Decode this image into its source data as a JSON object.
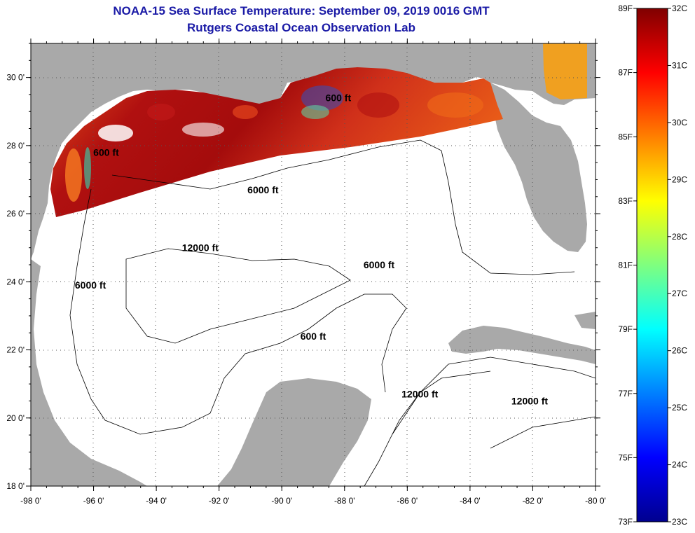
{
  "title": {
    "line1": "NOAA-15 Sea Surface Temperature:  September 09, 2019 0016 GMT",
    "line2": "Rutgers Coastal Ocean Observation Lab"
  },
  "colors": {
    "title": "#1a1aa6",
    "land": "#a9a9a9",
    "ocean": "#ffffff"
  },
  "map": {
    "lon_range": [
      -98,
      -80
    ],
    "lat_range": [
      18,
      31
    ],
    "lon_ticks": [
      "-98 0'",
      "-96 0'",
      "-94 0'",
      "-92 0'",
      "-90 0'",
      "-88 0'",
      "-86 0'",
      "-84 0'",
      "-82 0'",
      "-80 0'"
    ],
    "lat_ticks": [
      "30 0'",
      "28 0'",
      "26 0'",
      "24 0'",
      "22 0'",
      "20 0'",
      "18 0'"
    ],
    "contour_labels": [
      {
        "text": "600 ft",
        "lon": -95.6,
        "lat": 27.7
      },
      {
        "text": "6000 ft",
        "lon": -90.6,
        "lat": 26.6
      },
      {
        "text": "600 ft",
        "lon": -88.2,
        "lat": 29.3
      },
      {
        "text": "12000 ft",
        "lon": -92.6,
        "lat": 24.9
      },
      {
        "text": "6000 ft",
        "lon": -86.9,
        "lat": 24.4
      },
      {
        "text": "6000 ft",
        "lon": -96.1,
        "lat": 23.8
      },
      {
        "text": "600 ft",
        "lon": -89.0,
        "lat": 22.3
      },
      {
        "text": "12000 ft",
        "lon": -85.6,
        "lat": 20.6
      },
      {
        "text": "12000 ft",
        "lon": -82.1,
        "lat": 20.4
      }
    ]
  },
  "colorbar": {
    "celsius_labels": [
      "32C",
      "31C",
      "30C",
      "29C",
      "28C",
      "27C",
      "26C",
      "25C",
      "24C",
      "23C"
    ],
    "fahrenheit_labels": [
      "89F",
      "87F",
      "85F",
      "83F",
      "81F",
      "79F",
      "77F",
      "75F",
      "73F"
    ],
    "range_c": [
      23,
      32
    ],
    "range_f": [
      73,
      89
    ]
  }
}
